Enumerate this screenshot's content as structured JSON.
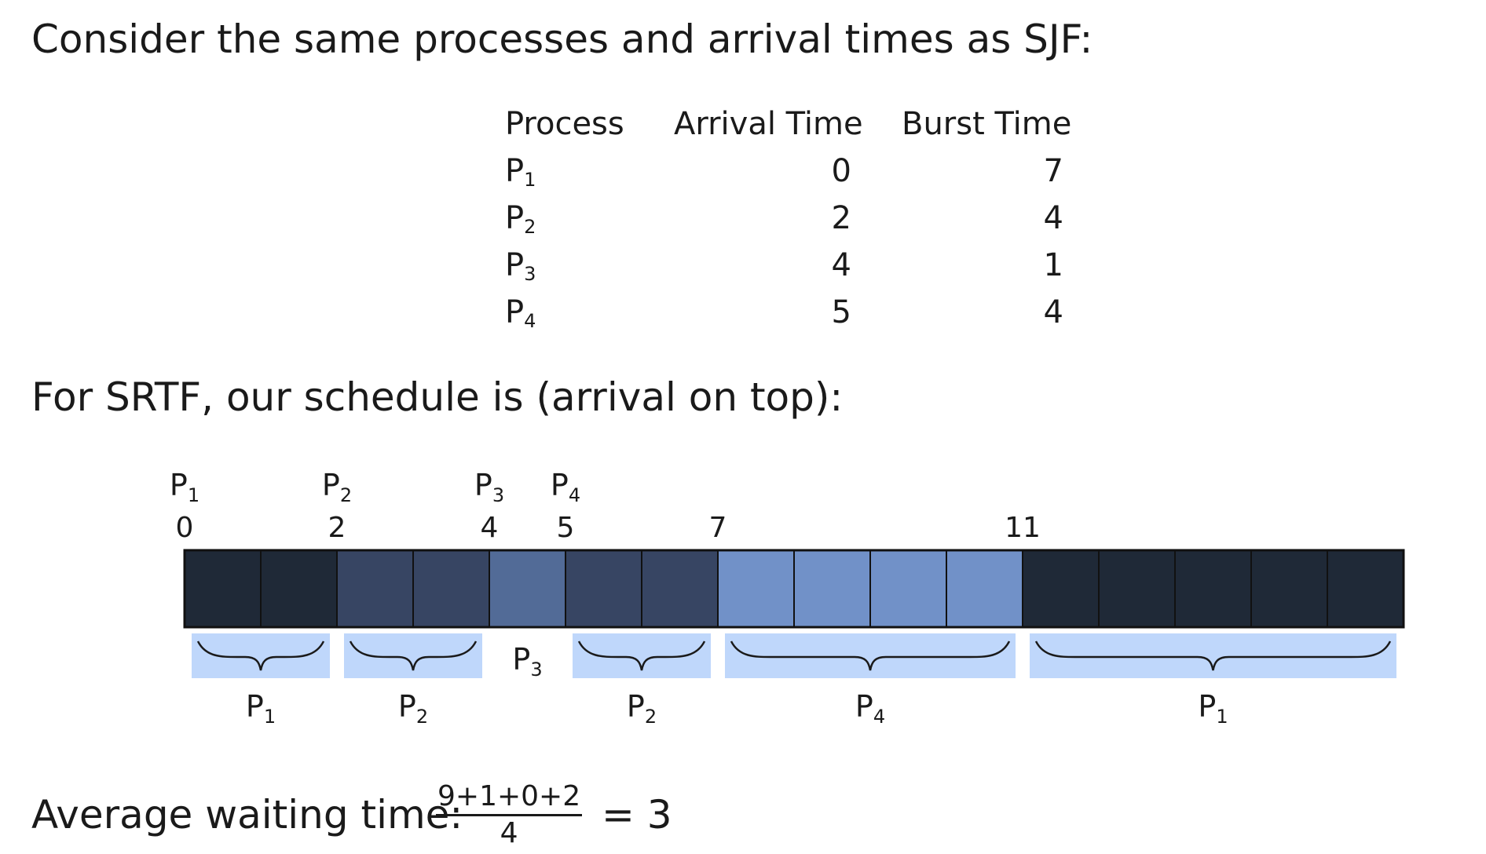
{
  "intro": "Consider the same processes and arrival times as SJF:",
  "table": {
    "headers": [
      "Process",
      "Arrival Time",
      "Burst Time"
    ],
    "rows": [
      {
        "process": "P",
        "sub": "1",
        "arrival": "0",
        "burst": "7"
      },
      {
        "process": "P",
        "sub": "2",
        "arrival": "2",
        "burst": "4"
      },
      {
        "process": "P",
        "sub": "3",
        "arrival": "4",
        "burst": "1"
      },
      {
        "process": "P",
        "sub": "4",
        "arrival": "5",
        "burst": "4"
      }
    ]
  },
  "schedule_heading": "For SRTF, our schedule is (arrival on top):",
  "timeline": {
    "arrivals": [
      {
        "name": "P",
        "sub": "1",
        "time": "0"
      },
      {
        "name": "P",
        "sub": "2",
        "time": "2"
      },
      {
        "name": "P",
        "sub": "3",
        "time": "4"
      },
      {
        "name": "P",
        "sub": "4",
        "time": "5"
      }
    ],
    "extra_ticks": [
      {
        "time": "7"
      },
      {
        "time": "11"
      }
    ],
    "cells": [
      "p1",
      "p1",
      "p2",
      "p2",
      "p3",
      "p2",
      "p2",
      "p4",
      "p4",
      "p4",
      "p4",
      "p1",
      "p1",
      "p1",
      "p1",
      "p1"
    ],
    "cell_colors": {
      "p1": "#1f2937",
      "p2": "#374563",
      "p3": "#526b97",
      "p4": "#7191c8"
    },
    "segment_bg": "#bfd7fb",
    "segments": [
      {
        "name": "P",
        "sub": "1",
        "start": 0,
        "end": 2,
        "braced": true
      },
      {
        "name": "P",
        "sub": "2",
        "start": 2,
        "end": 4,
        "braced": true
      },
      {
        "name": "P",
        "sub": "3",
        "start": 4,
        "end": 5,
        "braced": false
      },
      {
        "name": "P",
        "sub": "2",
        "start": 5,
        "end": 7,
        "braced": true
      },
      {
        "name": "P",
        "sub": "4",
        "start": 7,
        "end": 11,
        "braced": true
      },
      {
        "name": "P",
        "sub": "1",
        "start": 11,
        "end": 16,
        "braced": true
      }
    ]
  },
  "average": {
    "label": "Average waiting time:",
    "numerator": "9+1+0+2",
    "denominator": "4",
    "result": "= 3"
  }
}
